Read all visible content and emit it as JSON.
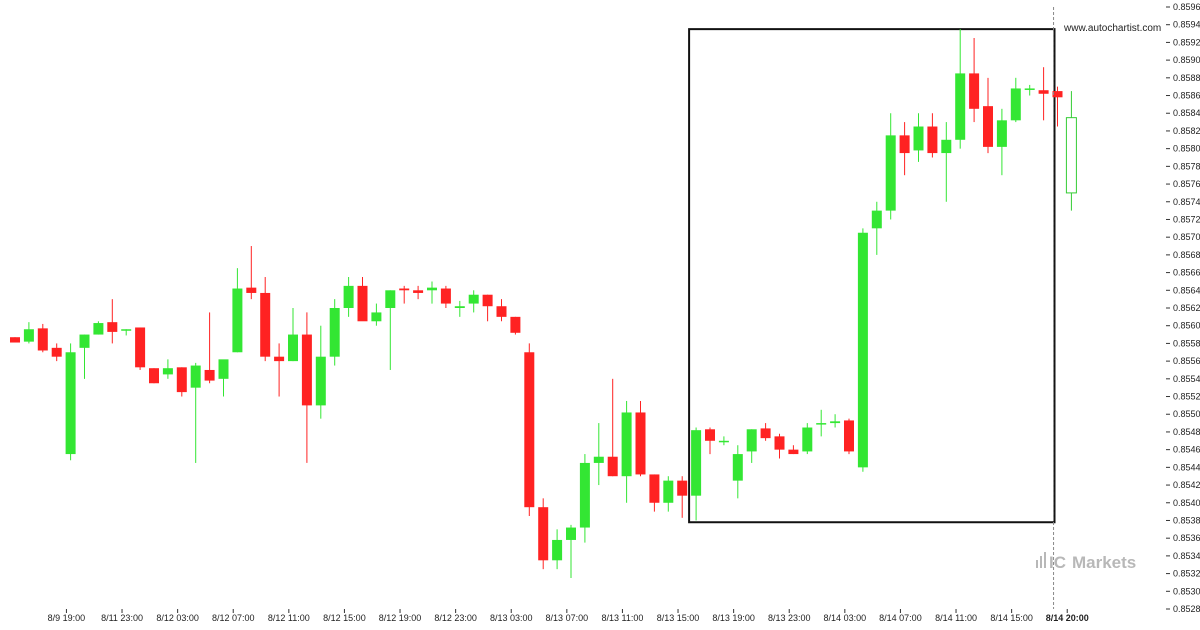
{
  "watermark_url": "www.autochartist.com",
  "brand": {
    "prefix": "IC",
    "name": "Markets"
  },
  "colors": {
    "bullish": "#33e633",
    "bearish": "#ff2222",
    "box": "#111111",
    "grid": "#eeeeee",
    "text": "#222222",
    "brand": "#b8b8b8",
    "last_candle": "#33cc33"
  },
  "chart_data": {
    "type": "candlestick",
    "instrument": "",
    "title": "",
    "xlabel": "",
    "ylabel": "",
    "ylim": [
      0.8528,
      0.8596
    ],
    "y_ticks": [
      "0.8528",
      "0.8530",
      "0.8532",
      "0.8534",
      "0.8536",
      "0.8538",
      "0.8540",
      "0.8542",
      "0.8544",
      "0.8546",
      "0.8548",
      "0.8550",
      "0.8552",
      "0.8554",
      "0.8556",
      "0.8558",
      "0.8560",
      "0.8562",
      "0.8564",
      "0.8566",
      "0.8568",
      "0.8570",
      "0.8572",
      "0.8574",
      "0.8576",
      "0.8578",
      "0.8580",
      "0.8582",
      "0.8584",
      "0.8586",
      "0.8588",
      "0.8590",
      "0.8592",
      "0.8594",
      "0.8596"
    ],
    "x_ticks": [
      {
        "label": "8/9 19:00",
        "bar": 2
      },
      {
        "label": "8/11 23:00",
        "bar": 6
      },
      {
        "label": "8/12 03:00",
        "bar": 10
      },
      {
        "label": "8/12 07:00",
        "bar": 14
      },
      {
        "label": "8/12 11:00",
        "bar": 18
      },
      {
        "label": "8/12 15:00",
        "bar": 22
      },
      {
        "label": "8/12 19:00",
        "bar": 26
      },
      {
        "label": "8/12 23:00",
        "bar": 30
      },
      {
        "label": "8/13 03:00",
        "bar": 34
      },
      {
        "label": "8/13 07:00",
        "bar": 38
      },
      {
        "label": "8/13 11:00",
        "bar": 42
      },
      {
        "label": "8/13 15:00",
        "bar": 46
      },
      {
        "label": "8/13 19:00",
        "bar": 50
      },
      {
        "label": "8/13 23:00",
        "bar": 54
      },
      {
        "label": "8/14 03:00",
        "bar": 58
      },
      {
        "label": "8/14 07:00",
        "bar": 62
      },
      {
        "label": "8/14 11:00",
        "bar": 66
      },
      {
        "label": "8/14 15:00",
        "bar": 70
      },
      {
        "label": "8/14 20:00",
        "bar": 74,
        "bold": true
      }
    ],
    "candles": [
      {
        "o": 0.85587,
        "h": 0.85587,
        "l": 0.85581,
        "c": 0.85581
      },
      {
        "o": 0.85582,
        "h": 0.85604,
        "l": 0.8558,
        "c": 0.85596
      },
      {
        "o": 0.85597,
        "h": 0.85602,
        "l": 0.8557,
        "c": 0.85572
      },
      {
        "o": 0.85575,
        "h": 0.8558,
        "l": 0.8556,
        "c": 0.85565
      },
      {
        "o": 0.85455,
        "h": 0.8558,
        "l": 0.85448,
        "c": 0.8557
      },
      {
        "o": 0.85575,
        "h": 0.8559,
        "l": 0.8554,
        "c": 0.8559
      },
      {
        "o": 0.8559,
        "h": 0.85605,
        "l": 0.8559,
        "c": 0.85603
      },
      {
        "o": 0.85604,
        "h": 0.8563,
        "l": 0.8558,
        "c": 0.85593
      },
      {
        "o": 0.85596,
        "h": 0.85596,
        "l": 0.85589,
        "c": 0.85596
      },
      {
        "o": 0.85598,
        "h": 0.85598,
        "l": 0.8555,
        "c": 0.85553
      },
      {
        "o": 0.85552,
        "h": 0.85552,
        "l": 0.85535,
        "c": 0.85535
      },
      {
        "o": 0.85545,
        "h": 0.85562,
        "l": 0.8554,
        "c": 0.85552
      },
      {
        "o": 0.85553,
        "h": 0.85553,
        "l": 0.8552,
        "c": 0.85525
      },
      {
        "o": 0.8553,
        "h": 0.85558,
        "l": 0.85445,
        "c": 0.85555
      },
      {
        "o": 0.8555,
        "h": 0.85615,
        "l": 0.85535,
        "c": 0.85538
      },
      {
        "o": 0.8554,
        "h": 0.8556,
        "l": 0.8552,
        "c": 0.85562
      },
      {
        "o": 0.8557,
        "h": 0.85665,
        "l": 0.8557,
        "c": 0.85642
      },
      {
        "o": 0.85643,
        "h": 0.8569,
        "l": 0.8563,
        "c": 0.85637
      },
      {
        "o": 0.85637,
        "h": 0.85655,
        "l": 0.8556,
        "c": 0.85565
      },
      {
        "o": 0.85565,
        "h": 0.8558,
        "l": 0.8552,
        "c": 0.8556
      },
      {
        "o": 0.8556,
        "h": 0.8562,
        "l": 0.8556,
        "c": 0.8559
      },
      {
        "o": 0.8559,
        "h": 0.85615,
        "l": 0.85445,
        "c": 0.8551
      },
      {
        "o": 0.8551,
        "h": 0.856,
        "l": 0.85495,
        "c": 0.85565
      },
      {
        "o": 0.85565,
        "h": 0.8563,
        "l": 0.85555,
        "c": 0.8562
      },
      {
        "o": 0.8562,
        "h": 0.85655,
        "l": 0.8561,
        "c": 0.85645
      },
      {
        "o": 0.85645,
        "h": 0.85655,
        "l": 0.8561,
        "c": 0.85605
      },
      {
        "o": 0.85605,
        "h": 0.85625,
        "l": 0.856,
        "c": 0.85615
      },
      {
        "o": 0.8562,
        "h": 0.8564,
        "l": 0.8555,
        "c": 0.8564
      },
      {
        "o": 0.85642,
        "h": 0.85645,
        "l": 0.85625,
        "c": 0.8564
      },
      {
        "o": 0.8564,
        "h": 0.85645,
        "l": 0.8563,
        "c": 0.85637
      },
      {
        "o": 0.8564,
        "h": 0.8565,
        "l": 0.85625,
        "c": 0.85643
      },
      {
        "o": 0.85642,
        "h": 0.85645,
        "l": 0.8562,
        "c": 0.85625
      },
      {
        "o": 0.8562,
        "h": 0.85628,
        "l": 0.8561,
        "c": 0.85622
      },
      {
        "o": 0.85625,
        "h": 0.8564,
        "l": 0.85615,
        "c": 0.85635
      },
      {
        "o": 0.85635,
        "h": 0.85635,
        "l": 0.85605,
        "c": 0.85622
      },
      {
        "o": 0.85622,
        "h": 0.8563,
        "l": 0.85605,
        "c": 0.8561
      },
      {
        "o": 0.8561,
        "h": 0.8561,
        "l": 0.8559,
        "c": 0.85592
      },
      {
        "o": 0.8557,
        "h": 0.8558,
        "l": 0.85385,
        "c": 0.85395
      },
      {
        "o": 0.85395,
        "h": 0.85405,
        "l": 0.85325,
        "c": 0.85335
      },
      {
        "o": 0.85335,
        "h": 0.8537,
        "l": 0.85325,
        "c": 0.85358
      },
      {
        "o": 0.85358,
        "h": 0.85375,
        "l": 0.85315,
        "c": 0.85372
      },
      {
        "o": 0.85372,
        "h": 0.85455,
        "l": 0.85355,
        "c": 0.85445
      },
      {
        "o": 0.85445,
        "h": 0.8549,
        "l": 0.8542,
        "c": 0.85452
      },
      {
        "o": 0.85452,
        "h": 0.8554,
        "l": 0.8543,
        "c": 0.8543
      },
      {
        "o": 0.8543,
        "h": 0.85515,
        "l": 0.854,
        "c": 0.85502
      },
      {
        "o": 0.85502,
        "h": 0.85515,
        "l": 0.8543,
        "c": 0.85432
      },
      {
        "o": 0.85432,
        "h": 0.85432,
        "l": 0.8539,
        "c": 0.854
      },
      {
        "o": 0.854,
        "h": 0.8543,
        "l": 0.8539,
        "c": 0.85425
      },
      {
        "o": 0.85425,
        "h": 0.8543,
        "l": 0.85383,
        "c": 0.85408
      },
      {
        "o": 0.85408,
        "h": 0.85485,
        "l": 0.8538,
        "c": 0.85482
      },
      {
        "o": 0.85483,
        "h": 0.85485,
        "l": 0.85455,
        "c": 0.8547
      },
      {
        "o": 0.8547,
        "h": 0.85475,
        "l": 0.85465,
        "c": 0.8547
      },
      {
        "o": 0.85425,
        "h": 0.85465,
        "l": 0.85405,
        "c": 0.85455
      },
      {
        "o": 0.85458,
        "h": 0.85483,
        "l": 0.85445,
        "c": 0.85483
      },
      {
        "o": 0.85484,
        "h": 0.8549,
        "l": 0.8547,
        "c": 0.85473
      },
      {
        "o": 0.85475,
        "h": 0.85478,
        "l": 0.8545,
        "c": 0.8546
      },
      {
        "o": 0.8546,
        "h": 0.85465,
        "l": 0.85455,
        "c": 0.85455
      },
      {
        "o": 0.85458,
        "h": 0.8549,
        "l": 0.85455,
        "c": 0.85485
      },
      {
        "o": 0.8549,
        "h": 0.85505,
        "l": 0.85475,
        "c": 0.8549
      },
      {
        "o": 0.8549,
        "h": 0.855,
        "l": 0.85485,
        "c": 0.85492
      },
      {
        "o": 0.85493,
        "h": 0.85495,
        "l": 0.85455,
        "c": 0.85458
      },
      {
        "o": 0.8544,
        "h": 0.8571,
        "l": 0.85435,
        "c": 0.85705
      },
      {
        "o": 0.8571,
        "h": 0.8574,
        "l": 0.8568,
        "c": 0.8573
      },
      {
        "o": 0.8573,
        "h": 0.8584,
        "l": 0.8572,
        "c": 0.85815
      },
      {
        "o": 0.85815,
        "h": 0.8583,
        "l": 0.8577,
        "c": 0.85795
      },
      {
        "o": 0.85798,
        "h": 0.8584,
        "l": 0.85785,
        "c": 0.85825
      },
      {
        "o": 0.85825,
        "h": 0.8584,
        "l": 0.8579,
        "c": 0.85795
      },
      {
        "o": 0.85795,
        "h": 0.8583,
        "l": 0.8574,
        "c": 0.8581
      },
      {
        "o": 0.8581,
        "h": 0.85935,
        "l": 0.858,
        "c": 0.85885
      },
      {
        "o": 0.85885,
        "h": 0.85925,
        "l": 0.8583,
        "c": 0.85845
      },
      {
        "o": 0.85848,
        "h": 0.8588,
        "l": 0.85795,
        "c": 0.85802
      },
      {
        "o": 0.85802,
        "h": 0.85845,
        "l": 0.8577,
        "c": 0.85832
      },
      {
        "o": 0.85832,
        "h": 0.8588,
        "l": 0.8583,
        "c": 0.85868
      },
      {
        "o": 0.85868,
        "h": 0.85872,
        "l": 0.8586,
        "c": 0.85868
      },
      {
        "o": 0.85866,
        "h": 0.85892,
        "l": 0.85832,
        "c": 0.85862
      },
      {
        "o": 0.85865,
        "h": 0.8587,
        "l": 0.85825,
        "c": 0.85858
      },
      {
        "o": 0.8575,
        "h": 0.85865,
        "l": 0.8573,
        "c": 0.85835,
        "hollow": true
      }
    ],
    "pattern_box": {
      "start_bar": 49,
      "end_bar": 75,
      "high": 0.85935,
      "low": 0.85378
    },
    "vertical_marker_bar": 74.5,
    "grid": false
  }
}
